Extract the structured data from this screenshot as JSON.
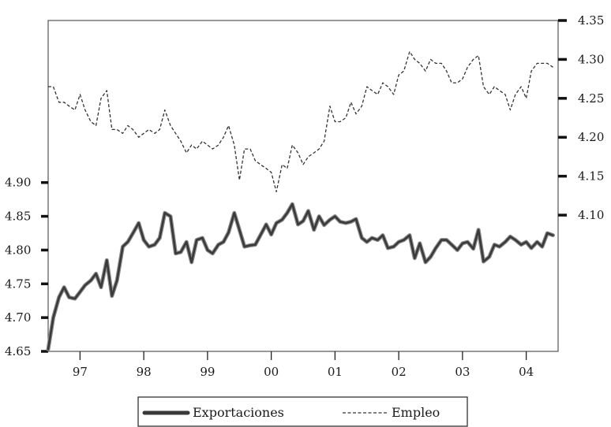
{
  "chart_data": {
    "type": "line",
    "title": "",
    "xlabel": "",
    "ylabel_left": "",
    "ylabel_right": "",
    "x_ticks": [
      "97",
      "98",
      "99",
      "00",
      "01",
      "02",
      "03",
      "04"
    ],
    "x_range": [
      1996.5,
      2004.5
    ],
    "y_left_ticks": [
      "4.65",
      "4.70",
      "4.75",
      "4.80",
      "4.85",
      "4.90"
    ],
    "y_left_range": [
      4.65,
      5.14
    ],
    "y_right_ticks": [
      "4.10",
      "4.15",
      "4.20",
      "4.25",
      "4.30",
      "4.35"
    ],
    "y_right_range": [
      3.925,
      4.35
    ],
    "grid": false,
    "legend_position": "bottom-center",
    "series": [
      {
        "name": "Exportaciones",
        "axis": "left",
        "color": "#3a3a3a",
        "style": "thick",
        "points": [
          [
            1996.5,
            4.653
          ],
          [
            1996.58,
            4.7
          ],
          [
            1996.67,
            4.73
          ],
          [
            1996.75,
            4.745
          ],
          [
            1996.83,
            4.73
          ],
          [
            1996.92,
            4.728
          ],
          [
            1997.0,
            4.738
          ],
          [
            1997.08,
            4.748
          ],
          [
            1997.17,
            4.755
          ],
          [
            1997.25,
            4.765
          ],
          [
            1997.33,
            4.745
          ],
          [
            1997.42,
            4.785
          ],
          [
            1997.5,
            4.732
          ],
          [
            1997.58,
            4.755
          ],
          [
            1997.67,
            4.805
          ],
          [
            1997.75,
            4.812
          ],
          [
            1997.83,
            4.825
          ],
          [
            1997.92,
            4.84
          ],
          [
            1998.0,
            4.815
          ],
          [
            1998.08,
            4.805
          ],
          [
            1998.17,
            4.808
          ],
          [
            1998.25,
            4.818
          ],
          [
            1998.33,
            4.855
          ],
          [
            1998.42,
            4.85
          ],
          [
            1998.5,
            4.795
          ],
          [
            1998.58,
            4.797
          ],
          [
            1998.67,
            4.812
          ],
          [
            1998.75,
            4.782
          ],
          [
            1998.83,
            4.815
          ],
          [
            1998.92,
            4.818
          ],
          [
            1999.0,
            4.8
          ],
          [
            1999.08,
            4.795
          ],
          [
            1999.17,
            4.808
          ],
          [
            1999.25,
            4.812
          ],
          [
            1999.33,
            4.826
          ],
          [
            1999.42,
            4.855
          ],
          [
            1999.5,
            4.83
          ],
          [
            1999.58,
            4.805
          ],
          [
            1999.67,
            4.807
          ],
          [
            1999.75,
            4.808
          ],
          [
            1999.83,
            4.822
          ],
          [
            1999.92,
            4.838
          ],
          [
            2000.0,
            4.823
          ],
          [
            2000.08,
            4.84
          ],
          [
            2000.17,
            4.845
          ],
          [
            2000.25,
            4.855
          ],
          [
            2000.33,
            4.868
          ],
          [
            2000.42,
            4.838
          ],
          [
            2000.5,
            4.843
          ],
          [
            2000.58,
            4.858
          ],
          [
            2000.67,
            4.83
          ],
          [
            2000.75,
            4.85
          ],
          [
            2000.83,
            4.837
          ],
          [
            2000.92,
            4.845
          ],
          [
            2001.0,
            4.85
          ],
          [
            2001.08,
            4.842
          ],
          [
            2001.17,
            4.84
          ],
          [
            2001.25,
            4.842
          ],
          [
            2001.33,
            4.846
          ],
          [
            2001.42,
            4.818
          ],
          [
            2001.5,
            4.812
          ],
          [
            2001.58,
            4.818
          ],
          [
            2001.67,
            4.815
          ],
          [
            2001.75,
            4.822
          ],
          [
            2001.83,
            4.803
          ],
          [
            2001.92,
            4.805
          ],
          [
            2002.0,
            4.812
          ],
          [
            2002.08,
            4.815
          ],
          [
            2002.17,
            4.822
          ],
          [
            2002.25,
            4.788
          ],
          [
            2002.33,
            4.81
          ],
          [
            2002.42,
            4.782
          ],
          [
            2002.5,
            4.79
          ],
          [
            2002.58,
            4.803
          ],
          [
            2002.67,
            4.815
          ],
          [
            2002.75,
            4.815
          ],
          [
            2002.83,
            4.808
          ],
          [
            2002.92,
            4.8
          ],
          [
            2003.0,
            4.81
          ],
          [
            2003.08,
            4.812
          ],
          [
            2003.17,
            4.802
          ],
          [
            2003.25,
            4.83
          ],
          [
            2003.33,
            4.783
          ],
          [
            2003.42,
            4.79
          ],
          [
            2003.5,
            4.808
          ],
          [
            2003.58,
            4.805
          ],
          [
            2003.67,
            4.812
          ],
          [
            2003.75,
            4.82
          ],
          [
            2003.83,
            4.815
          ],
          [
            2003.92,
            4.808
          ],
          [
            2004.0,
            4.812
          ],
          [
            2004.08,
            4.803
          ],
          [
            2004.17,
            4.812
          ],
          [
            2004.25,
            4.805
          ],
          [
            2004.33,
            4.825
          ],
          [
            2004.42,
            4.822
          ]
        ]
      },
      {
        "name": "Empleo",
        "axis": "right",
        "color": "#333333",
        "style": "dashed",
        "points": [
          [
            1996.5,
            4.265
          ],
          [
            1996.58,
            4.265
          ],
          [
            1996.67,
            4.245
          ],
          [
            1996.75,
            4.245
          ],
          [
            1996.83,
            4.24
          ],
          [
            1996.92,
            4.235
          ],
          [
            1997.0,
            4.255
          ],
          [
            1997.08,
            4.235
          ],
          [
            1997.17,
            4.22
          ],
          [
            1997.25,
            4.215
          ],
          [
            1997.33,
            4.25
          ],
          [
            1997.42,
            4.26
          ],
          [
            1997.5,
            4.21
          ],
          [
            1997.58,
            4.21
          ],
          [
            1997.67,
            4.205
          ],
          [
            1997.75,
            4.215
          ],
          [
            1997.83,
            4.21
          ],
          [
            1997.92,
            4.2
          ],
          [
            1998.0,
            4.205
          ],
          [
            1998.08,
            4.21
          ],
          [
            1998.17,
            4.205
          ],
          [
            1998.25,
            4.21
          ],
          [
            1998.33,
            4.235
          ],
          [
            1998.42,
            4.215
          ],
          [
            1998.5,
            4.205
          ],
          [
            1998.58,
            4.195
          ],
          [
            1998.67,
            4.18
          ],
          [
            1998.75,
            4.19
          ],
          [
            1998.83,
            4.185
          ],
          [
            1998.92,
            4.195
          ],
          [
            1999.0,
            4.19
          ],
          [
            1999.08,
            4.185
          ],
          [
            1999.17,
            4.19
          ],
          [
            1999.25,
            4.2
          ],
          [
            1999.33,
            4.215
          ],
          [
            1999.42,
            4.19
          ],
          [
            1999.5,
            4.145
          ],
          [
            1999.58,
            4.185
          ],
          [
            1999.67,
            4.185
          ],
          [
            1999.75,
            4.17
          ],
          [
            1999.83,
            4.165
          ],
          [
            1999.92,
            4.16
          ],
          [
            2000.0,
            4.155
          ],
          [
            2000.08,
            4.13
          ],
          [
            2000.17,
            4.165
          ],
          [
            2000.25,
            4.16
          ],
          [
            2000.33,
            4.19
          ],
          [
            2000.42,
            4.18
          ],
          [
            2000.5,
            4.165
          ],
          [
            2000.58,
            4.175
          ],
          [
            2000.67,
            4.18
          ],
          [
            2000.75,
            4.185
          ],
          [
            2000.83,
            4.195
          ],
          [
            2000.92,
            4.24
          ],
          [
            2001.0,
            4.22
          ],
          [
            2001.08,
            4.22
          ],
          [
            2001.17,
            4.225
          ],
          [
            2001.25,
            4.245
          ],
          [
            2001.33,
            4.23
          ],
          [
            2001.42,
            4.24
          ],
          [
            2001.5,
            4.265
          ],
          [
            2001.58,
            4.26
          ],
          [
            2001.67,
            4.255
          ],
          [
            2001.75,
            4.27
          ],
          [
            2001.83,
            4.265
          ],
          [
            2001.92,
            4.255
          ],
          [
            2002.0,
            4.28
          ],
          [
            2002.08,
            4.285
          ],
          [
            2002.17,
            4.31
          ],
          [
            2002.25,
            4.3
          ],
          [
            2002.33,
            4.295
          ],
          [
            2002.42,
            4.285
          ],
          [
            2002.5,
            4.3
          ],
          [
            2002.58,
            4.295
          ],
          [
            2002.67,
            4.295
          ],
          [
            2002.75,
            4.285
          ],
          [
            2002.83,
            4.27
          ],
          [
            2002.92,
            4.27
          ],
          [
            2003.0,
            4.275
          ],
          [
            2003.08,
            4.29
          ],
          [
            2003.17,
            4.3
          ],
          [
            2003.25,
            4.305
          ],
          [
            2003.33,
            4.265
          ],
          [
            2003.42,
            4.255
          ],
          [
            2003.5,
            4.265
          ],
          [
            2003.58,
            4.26
          ],
          [
            2003.67,
            4.255
          ],
          [
            2003.75,
            4.235
          ],
          [
            2003.83,
            4.255
          ],
          [
            2003.92,
            4.265
          ],
          [
            2004.0,
            4.25
          ],
          [
            2004.08,
            4.285
          ],
          [
            2004.17,
            4.295
          ],
          [
            2004.25,
            4.295
          ],
          [
            2004.33,
            4.295
          ],
          [
            2004.42,
            4.29
          ]
        ]
      }
    ]
  }
}
